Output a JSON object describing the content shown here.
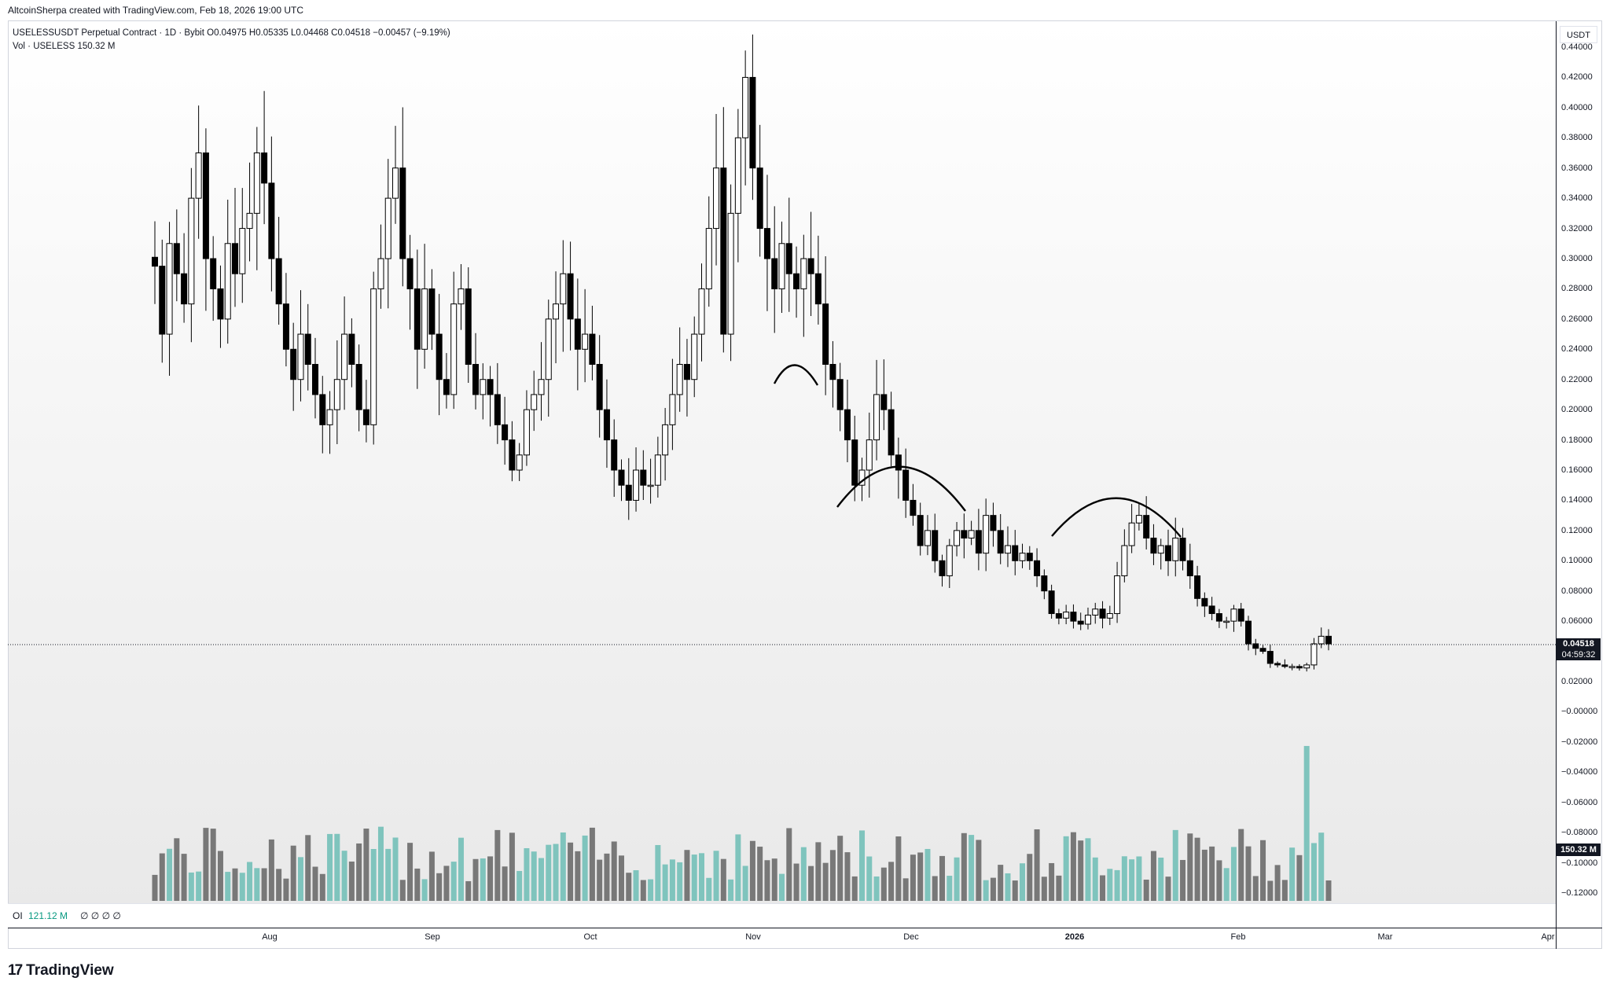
{
  "credit": "AltcoinSherpa created with TradingView.com, Feb 18, 2026 19:00 UTC",
  "legend": {
    "symbol": "USELESSUSDT Perpetual Contract · 1D · Bybit",
    "open_label": "O",
    "open": "0.04975",
    "high_label": "H",
    "high": "0.05335",
    "low_label": "L",
    "low": "0.04468",
    "close_label": "C",
    "close": "0.04518",
    "change": "−0.00457 (−9.19%)",
    "vol_label": "Vol · USELESS",
    "vol_value": "150.32 M"
  },
  "oi": {
    "label": "OI",
    "value": "121.12 M",
    "placeholders": "∅ ∅ ∅ ∅"
  },
  "currency": "USDT",
  "last_price_tag": "0.04518",
  "countdown": "04:59:32",
  "volume_tag": "150.32 M",
  "brand": {
    "logo": "17",
    "name": "TradingView"
  },
  "colors": {
    "up": "#ffffff",
    "down": "#000000",
    "vol_up": "#7fc4bd",
    "vol_down": "#787878"
  },
  "chart_data": {
    "type": "candlestick",
    "price_axis": {
      "ticks": [
        "0.44000",
        "0.42000",
        "0.40000",
        "0.38000",
        "0.36000",
        "0.34000",
        "0.32000",
        "0.30000",
        "0.28000",
        "0.26000",
        "0.24000",
        "0.22000",
        "0.20000",
        "0.18000",
        "0.16000",
        "0.14000",
        "0.12000",
        "0.10000",
        "0.08000",
        "0.06000",
        "0.04000",
        "0.02000",
        "−0.00000",
        "−0.02000",
        "−0.04000",
        "−0.06000",
        "−0.08000",
        "−0.10000",
        "−0.12000"
      ],
      "ylim": [
        -0.12,
        0.44
      ]
    },
    "time_axis": {
      "labels": [
        "Aug",
        "Sep",
        "Oct",
        "Nov",
        "Dec",
        "2026",
        "Feb",
        "Mar",
        "Apr"
      ]
    },
    "last_price": 0.04518,
    "close_series": [
      0.295,
      0.25,
      0.31,
      0.29,
      0.27,
      0.34,
      0.37,
      0.3,
      0.28,
      0.26,
      0.31,
      0.29,
      0.32,
      0.33,
      0.37,
      0.35,
      0.3,
      0.27,
      0.24,
      0.22,
      0.25,
      0.23,
      0.21,
      0.19,
      0.2,
      0.22,
      0.25,
      0.23,
      0.2,
      0.19,
      0.28,
      0.3,
      0.34,
      0.36,
      0.3,
      0.28,
      0.24,
      0.28,
      0.25,
      0.22,
      0.21,
      0.27,
      0.28,
      0.23,
      0.21,
      0.22,
      0.21,
      0.19,
      0.18,
      0.16,
      0.17,
      0.2,
      0.21,
      0.22,
      0.26,
      0.27,
      0.29,
      0.26,
      0.24,
      0.25,
      0.23,
      0.2,
      0.18,
      0.16,
      0.15,
      0.14,
      0.16,
      0.15,
      0.15,
      0.17,
      0.19,
      0.21,
      0.23,
      0.22,
      0.25,
      0.28,
      0.32,
      0.36,
      0.25,
      0.33,
      0.38,
      0.42,
      0.36,
      0.32,
      0.3,
      0.28,
      0.31,
      0.29,
      0.28,
      0.3,
      0.29,
      0.27,
      0.23,
      0.22,
      0.2,
      0.18,
      0.15,
      0.16,
      0.18,
      0.21,
      0.2,
      0.17,
      0.16,
      0.14,
      0.13,
      0.11,
      0.12,
      0.1,
      0.09,
      0.11,
      0.12,
      0.115,
      0.12,
      0.105,
      0.13,
      0.12,
      0.105,
      0.11,
      0.1,
      0.105,
      0.1,
      0.09,
      0.08,
      0.065,
      0.062,
      0.066,
      0.06,
      0.058,
      0.064,
      0.068,
      0.062,
      0.065,
      0.09,
      0.11,
      0.125,
      0.13,
      0.115,
      0.105,
      0.11,
      0.1,
      0.115,
      0.1,
      0.09,
      0.075,
      0.07,
      0.065,
      0.06,
      0.06,
      0.068,
      0.06,
      0.045,
      0.042,
      0.04,
      0.032,
      0.031,
      0.03,
      0.03,
      0.029,
      0.031,
      0.045,
      0.05,
      0.045
    ],
    "volume_axis_note": "",
    "annotations": [
      "arc",
      "arc",
      "arc"
    ]
  }
}
